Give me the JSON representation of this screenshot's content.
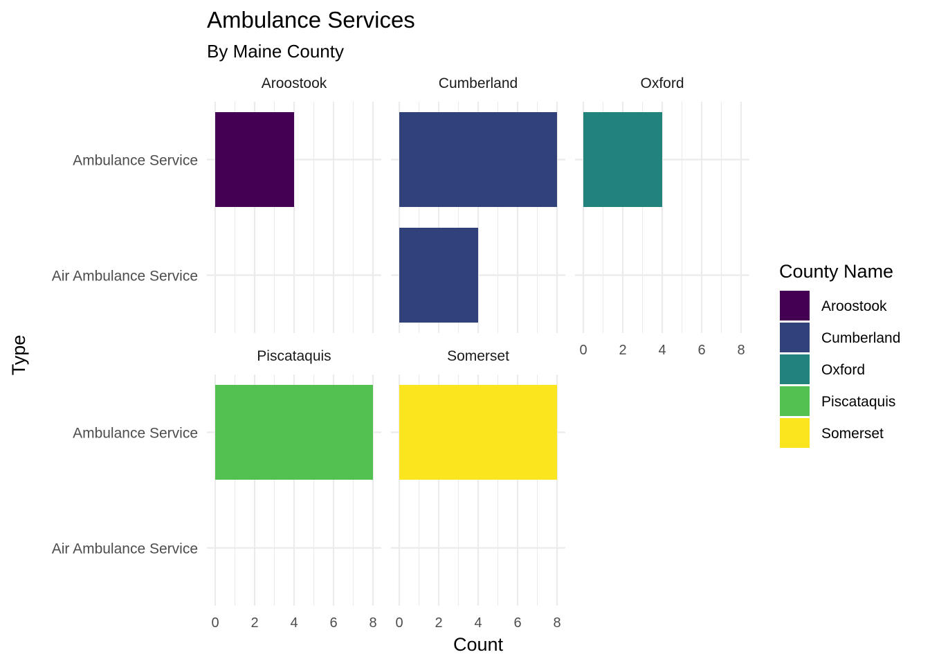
{
  "chart_data": {
    "type": "bar",
    "orientation": "horizontal",
    "faceted": true,
    "title": "Ambulance Services",
    "subtitle": "By Maine County",
    "xlabel": "Count",
    "ylabel": "Type",
    "categories": [
      "Ambulance Service",
      "Air Ambulance Service"
    ],
    "xlim": [
      0,
      8
    ],
    "xticks": [
      "0",
      "2",
      "4",
      "6",
      "8"
    ],
    "grid": true,
    "legend": {
      "title": "County Name",
      "position": "right"
    },
    "series": [
      {
        "name": "Aroostook",
        "color": "#440154",
        "values": [
          4,
          0
        ]
      },
      {
        "name": "Cumberland",
        "color": "#31427A",
        "values": [
          8,
          4
        ]
      },
      {
        "name": "Oxford",
        "color": "#21837B",
        "values": [
          4,
          0
        ]
      },
      {
        "name": "Piscataquis",
        "color": "#52C152",
        "values": [
          8,
          0
        ]
      },
      {
        "name": "Somerset",
        "color": "#FAE51F",
        "values": [
          8,
          0
        ]
      }
    ]
  }
}
